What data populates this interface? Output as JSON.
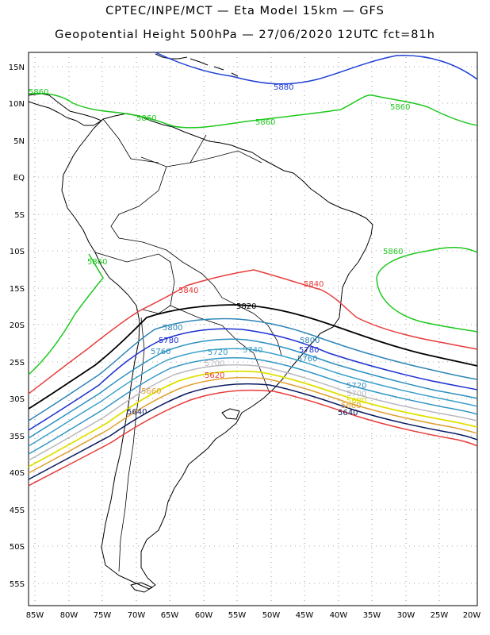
{
  "title_line1": "CPTEC/INPE/MCT —  Eta Model 15km — GFS",
  "title_line2": "Geopotential Height 500hPa — 27/06/2020 12UTC fct=81h",
  "colors": {
    "c5880": "#1f3fd6",
    "c5860": "#1ec81e",
    "c5840": "#e83c3c",
    "c5820": "#000000",
    "c5800": "#2e86b8",
    "c5780": "#1a2fd0",
    "c5760": "#2a8fc0",
    "c5740": "#3aa0c8",
    "c5720": "#3396c4",
    "c5700": "#b8b8c0",
    "c5680": "#e0e000",
    "c5660": "#e0a030",
    "c5640": "#0b1a60",
    "c5620": "#e83c3c"
  },
  "lat_labels": [
    "15N",
    "10N",
    "5N",
    "EQ",
    "5S",
    "10S",
    "15S",
    "20S",
    "25S",
    "30S",
    "35S",
    "40S",
    "45S",
    "50S",
    "55S"
  ],
  "lon_labels": [
    "85W",
    "80W",
    "75W",
    "70W",
    "65W",
    "60W",
    "55W",
    "50W",
    "45W",
    "40W",
    "35W",
    "30W",
    "25W",
    "20W"
  ],
  "contour_labels": {
    "l5880": "5880",
    "l5860a": "5860",
    "l5860b": "5860",
    "l5860c": "5860",
    "l5860d": "5860",
    "l5860e": "5860",
    "l5860f": "5860",
    "l5840a": "5840",
    "l5840b": "5840",
    "l5820": "5820",
    "l5800a": "5800",
    "l5800b": "5800",
    "l5780a": "5780",
    "l5780b": "5780",
    "l5760a": "5760",
    "l5760b": "5760",
    "l5740": "5740",
    "l5720a": "5720",
    "l5720b": "5720",
    "l5700a": "5700",
    "l5700b": "5700",
    "l5680": "5680",
    "l5660a": "5660",
    "l5660b": "5660",
    "l5640a": "5640",
    "l5640b": "5640",
    "l5620": "5620"
  }
}
